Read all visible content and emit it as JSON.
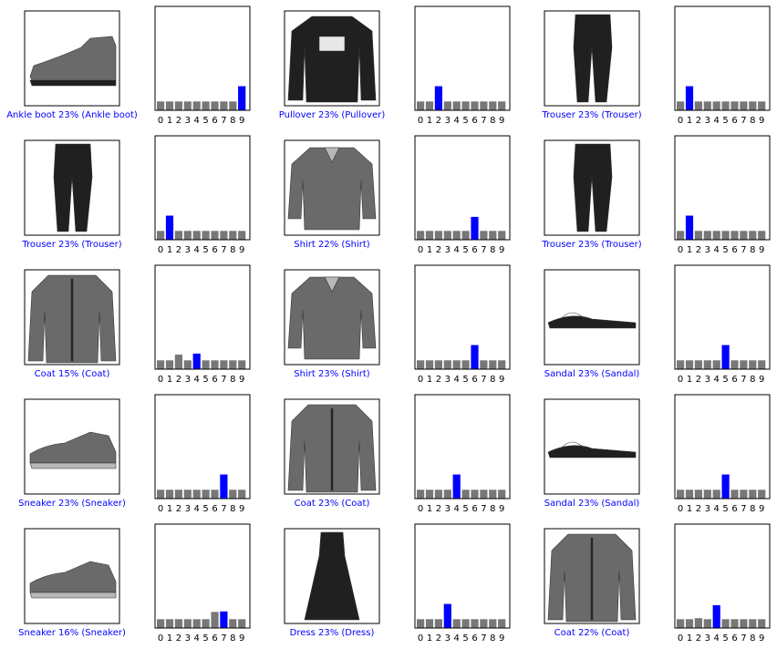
{
  "figure": {
    "colors": {
      "bar": "#777777",
      "predicted": "#0000ff",
      "caption": "#0000ff"
    },
    "tick_labels": [
      "0",
      "1",
      "2",
      "3",
      "4",
      "5",
      "6",
      "7",
      "8",
      "9"
    ]
  },
  "chart_data": [
    {
      "type": "bar",
      "image_icon": "ankle-boot-image",
      "caption": "Ankle boot 23% (Ankle boot)",
      "categories": [
        "0",
        "1",
        "2",
        "3",
        "4",
        "5",
        "6",
        "7",
        "8",
        "9"
      ],
      "values": [
        0.085,
        0.085,
        0.085,
        0.085,
        0.085,
        0.085,
        0.085,
        0.085,
        0.085,
        0.232
      ],
      "highlight": 9,
      "ylim": [
        0,
        1
      ]
    },
    {
      "type": "bar",
      "image_icon": "pullover-image",
      "caption": "Pullover 23% (Pullover)",
      "categories": [
        "0",
        "1",
        "2",
        "3",
        "4",
        "5",
        "6",
        "7",
        "8",
        "9"
      ],
      "values": [
        0.085,
        0.085,
        0.232,
        0.085,
        0.085,
        0.085,
        0.085,
        0.085,
        0.085,
        0.085
      ],
      "highlight": 2,
      "ylim": [
        0,
        1
      ]
    },
    {
      "type": "bar",
      "image_icon": "trouser-image",
      "caption": "Trouser 23% (Trouser)",
      "categories": [
        "0",
        "1",
        "2",
        "3",
        "4",
        "5",
        "6",
        "7",
        "8",
        "9"
      ],
      "values": [
        0.085,
        0.232,
        0.085,
        0.085,
        0.085,
        0.085,
        0.085,
        0.085,
        0.085,
        0.085
      ],
      "highlight": 1,
      "ylim": [
        0,
        1
      ]
    },
    {
      "type": "bar",
      "image_icon": "trouser-image",
      "caption": "Trouser 23% (Trouser)",
      "categories": [
        "0",
        "1",
        "2",
        "3",
        "4",
        "5",
        "6",
        "7",
        "8",
        "9"
      ],
      "values": [
        0.085,
        0.232,
        0.085,
        0.085,
        0.085,
        0.085,
        0.085,
        0.085,
        0.085,
        0.085
      ],
      "highlight": 1,
      "ylim": [
        0,
        1
      ]
    },
    {
      "type": "bar",
      "image_icon": "shirt-image",
      "caption": "Shirt 22% (Shirt)",
      "categories": [
        "0",
        "1",
        "2",
        "3",
        "4",
        "5",
        "6",
        "7",
        "8",
        "9"
      ],
      "values": [
        0.085,
        0.085,
        0.085,
        0.085,
        0.085,
        0.085,
        0.22,
        0.085,
        0.085,
        0.085
      ],
      "highlight": 6,
      "ylim": [
        0,
        1
      ]
    },
    {
      "type": "bar",
      "image_icon": "trouser-image",
      "caption": "Trouser 23% (Trouser)",
      "categories": [
        "0",
        "1",
        "2",
        "3",
        "4",
        "5",
        "6",
        "7",
        "8",
        "9"
      ],
      "values": [
        0.085,
        0.232,
        0.085,
        0.085,
        0.085,
        0.085,
        0.085,
        0.085,
        0.085,
        0.085
      ],
      "highlight": 1,
      "ylim": [
        0,
        1
      ]
    },
    {
      "type": "bar",
      "image_icon": "coat-image",
      "caption": "Coat 15% (Coat)",
      "categories": [
        "0",
        "1",
        "2",
        "3",
        "4",
        "5",
        "6",
        "7",
        "8",
        "9"
      ],
      "values": [
        0.085,
        0.085,
        0.14,
        0.085,
        0.15,
        0.085,
        0.085,
        0.085,
        0.085,
        0.085
      ],
      "highlight": 4,
      "ylim": [
        0,
        1
      ]
    },
    {
      "type": "bar",
      "image_icon": "shirt-image",
      "caption": "Shirt 23% (Shirt)",
      "categories": [
        "0",
        "1",
        "2",
        "3",
        "4",
        "5",
        "6",
        "7",
        "8",
        "9"
      ],
      "values": [
        0.085,
        0.085,
        0.085,
        0.085,
        0.085,
        0.085,
        0.232,
        0.085,
        0.085,
        0.085
      ],
      "highlight": 6,
      "ylim": [
        0,
        1
      ]
    },
    {
      "type": "bar",
      "image_icon": "sandal-image",
      "caption": "Sandal 23% (Sandal)",
      "categories": [
        "0",
        "1",
        "2",
        "3",
        "4",
        "5",
        "6",
        "7",
        "8",
        "9"
      ],
      "values": [
        0.085,
        0.085,
        0.085,
        0.085,
        0.085,
        0.232,
        0.085,
        0.085,
        0.085,
        0.085
      ],
      "highlight": 5,
      "ylim": [
        0,
        1
      ]
    },
    {
      "type": "bar",
      "image_icon": "sneaker-image",
      "caption": "Sneaker 23% (Sneaker)",
      "categories": [
        "0",
        "1",
        "2",
        "3",
        "4",
        "5",
        "6",
        "7",
        "8",
        "9"
      ],
      "values": [
        0.085,
        0.085,
        0.085,
        0.085,
        0.085,
        0.085,
        0.085,
        0.232,
        0.085,
        0.085
      ],
      "highlight": 7,
      "ylim": [
        0,
        1
      ]
    },
    {
      "type": "bar",
      "image_icon": "coat-image",
      "caption": "Coat 23% (Coat)",
      "categories": [
        "0",
        "1",
        "2",
        "3",
        "4",
        "5",
        "6",
        "7",
        "8",
        "9"
      ],
      "values": [
        0.085,
        0.085,
        0.085,
        0.085,
        0.232,
        0.085,
        0.085,
        0.085,
        0.085,
        0.085
      ],
      "highlight": 4,
      "ylim": [
        0,
        1
      ]
    },
    {
      "type": "bar",
      "image_icon": "sandal-image",
      "caption": "Sandal 23% (Sandal)",
      "categories": [
        "0",
        "1",
        "2",
        "3",
        "4",
        "5",
        "6",
        "7",
        "8",
        "9"
      ],
      "values": [
        0.085,
        0.085,
        0.085,
        0.085,
        0.085,
        0.232,
        0.085,
        0.085,
        0.085,
        0.085
      ],
      "highlight": 5,
      "ylim": [
        0,
        1
      ]
    },
    {
      "type": "bar",
      "image_icon": "sneaker-image",
      "caption": "Sneaker 16% (Sneaker)",
      "categories": [
        "0",
        "1",
        "2",
        "3",
        "4",
        "5",
        "6",
        "7",
        "8",
        "9"
      ],
      "values": [
        0.085,
        0.085,
        0.085,
        0.085,
        0.085,
        0.085,
        0.155,
        0.16,
        0.085,
        0.085
      ],
      "highlight": 7,
      "ylim": [
        0,
        1
      ]
    },
    {
      "type": "bar",
      "image_icon": "dress-image",
      "caption": "Dress 23% (Dress)",
      "categories": [
        "0",
        "1",
        "2",
        "3",
        "4",
        "5",
        "6",
        "7",
        "8",
        "9"
      ],
      "values": [
        0.085,
        0.085,
        0.085,
        0.232,
        0.085,
        0.085,
        0.085,
        0.085,
        0.085,
        0.085
      ],
      "highlight": 3,
      "ylim": [
        0,
        1
      ]
    },
    {
      "type": "bar",
      "image_icon": "coat-image",
      "caption": "Coat 22% (Coat)",
      "categories": [
        "0",
        "1",
        "2",
        "3",
        "4",
        "5",
        "6",
        "7",
        "8",
        "9"
      ],
      "values": [
        0.085,
        0.085,
        0.095,
        0.085,
        0.22,
        0.085,
        0.085,
        0.085,
        0.085,
        0.085
      ],
      "highlight": 4,
      "ylim": [
        0,
        1
      ]
    }
  ]
}
